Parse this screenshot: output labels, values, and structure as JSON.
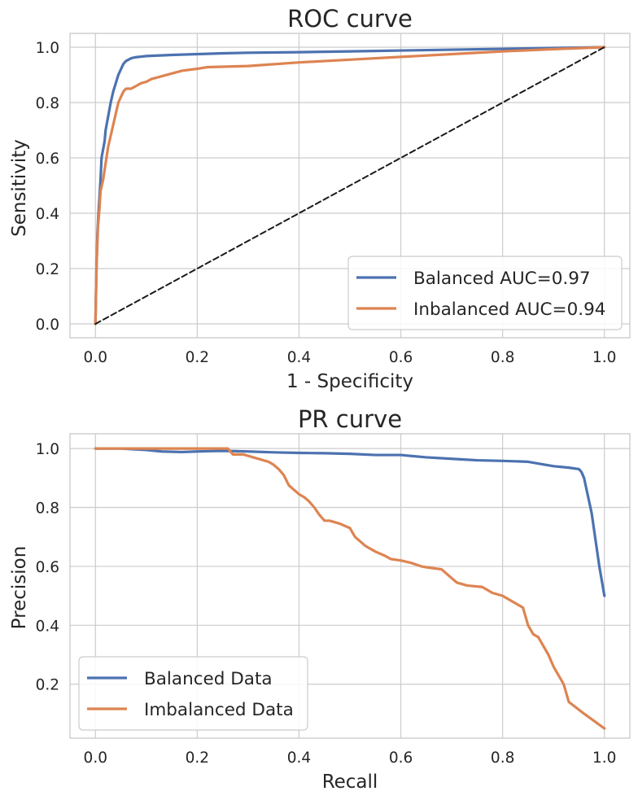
{
  "chart_data": [
    {
      "type": "line",
      "title": "ROC curve",
      "xlabel": "1 - Specificity",
      "ylabel": "Sensitivity",
      "xlim": [
        -0.05,
        1.05
      ],
      "ylim": [
        -0.05,
        1.05
      ],
      "xticks": [
        "0.0",
        "0.2",
        "0.4",
        "0.6",
        "0.8",
        "1.0"
      ],
      "yticks": [
        "0.0",
        "0.2",
        "0.4",
        "0.6",
        "0.8",
        "1.0"
      ],
      "grid": true,
      "legend_position": "lower-right",
      "series": [
        {
          "name": "Balanced AUC=0.97",
          "color": "#4c72b0",
          "x": [
            0,
            0.002,
            0.004,
            0.006,
            0.008,
            0.01,
            0.012,
            0.015,
            0.018,
            0.02,
            0.025,
            0.03,
            0.035,
            0.04,
            0.045,
            0.05,
            0.055,
            0.06,
            0.065,
            0.07,
            0.08,
            0.09,
            0.1,
            0.15,
            0.2,
            0.25,
            0.3,
            0.4,
            0.5,
            0.6,
            0.7,
            0.8,
            0.9,
            1.0
          ],
          "y": [
            0,
            0.2,
            0.33,
            0.4,
            0.46,
            0.52,
            0.6,
            0.63,
            0.66,
            0.7,
            0.75,
            0.8,
            0.84,
            0.87,
            0.9,
            0.92,
            0.94,
            0.95,
            0.955,
            0.96,
            0.964,
            0.966,
            0.968,
            0.972,
            0.975,
            0.978,
            0.98,
            0.982,
            0.985,
            0.988,
            0.991,
            0.994,
            0.997,
            1.0
          ]
        },
        {
          "name": "Inbalanced AUC=0.94",
          "color": "#dd8452",
          "x": [
            0,
            0.002,
            0.005,
            0.008,
            0.01,
            0.015,
            0.02,
            0.025,
            0.03,
            0.035,
            0.04,
            0.045,
            0.05,
            0.055,
            0.06,
            0.07,
            0.08,
            0.09,
            0.1,
            0.11,
            0.12,
            0.13,
            0.15,
            0.17,
            0.2,
            0.22,
            0.3,
            0.4,
            0.5,
            0.6,
            0.7,
            0.8,
            0.9,
            1.0
          ],
          "y": [
            0,
            0.2,
            0.35,
            0.42,
            0.48,
            0.52,
            0.58,
            0.64,
            0.68,
            0.72,
            0.76,
            0.8,
            0.82,
            0.84,
            0.85,
            0.85,
            0.86,
            0.87,
            0.875,
            0.885,
            0.89,
            0.895,
            0.905,
            0.915,
            0.922,
            0.928,
            0.932,
            0.945,
            0.955,
            0.965,
            0.975,
            0.985,
            0.993,
            1.0
          ]
        },
        {
          "name": "",
          "color": "#1a1a1a",
          "dashed": true,
          "x": [
            0,
            1
          ],
          "y": [
            0,
            1
          ]
        }
      ]
    },
    {
      "type": "line",
      "title": "PR curve",
      "xlabel": "Recall",
      "ylabel": "Precision",
      "xlim": [
        -0.05,
        1.05
      ],
      "ylim": [
        0.017,
        1.05
      ],
      "xticks": [
        "0.0",
        "0.2",
        "0.4",
        "0.6",
        "0.8",
        "1.0"
      ],
      "yticks": [
        "0.2",
        "0.4",
        "0.6",
        "0.8",
        "1.0"
      ],
      "grid": true,
      "legend_position": "lower-left",
      "series": [
        {
          "name": "Balanced Data",
          "color": "#4c72b0",
          "x": [
            0,
            0.05,
            0.1,
            0.13,
            0.17,
            0.2,
            0.25,
            0.3,
            0.35,
            0.4,
            0.45,
            0.5,
            0.55,
            0.6,
            0.65,
            0.7,
            0.75,
            0.8,
            0.85,
            0.9,
            0.93,
            0.95,
            0.955,
            0.96,
            0.965,
            0.97,
            0.975,
            0.98,
            0.985,
            0.99,
            0.995,
            1.0
          ],
          "y": [
            1.0,
            1.0,
            0.995,
            0.99,
            0.988,
            0.99,
            0.992,
            0.99,
            0.987,
            0.985,
            0.984,
            0.982,
            0.978,
            0.978,
            0.97,
            0.965,
            0.96,
            0.958,
            0.955,
            0.94,
            0.935,
            0.93,
            0.92,
            0.9,
            0.86,
            0.82,
            0.78,
            0.72,
            0.66,
            0.6,
            0.55,
            0.5
          ]
        },
        {
          "name": "Imbalanced Data",
          "color": "#dd8452",
          "x": [
            0,
            0.1,
            0.2,
            0.26,
            0.27,
            0.29,
            0.3,
            0.31,
            0.32,
            0.33,
            0.34,
            0.35,
            0.36,
            0.37,
            0.38,
            0.39,
            0.4,
            0.41,
            0.42,
            0.43,
            0.44,
            0.45,
            0.46,
            0.48,
            0.5,
            0.51,
            0.53,
            0.55,
            0.57,
            0.58,
            0.6,
            0.62,
            0.64,
            0.65,
            0.68,
            0.7,
            0.71,
            0.73,
            0.76,
            0.78,
            0.8,
            0.82,
            0.84,
            0.85,
            0.86,
            0.87,
            0.88,
            0.89,
            0.9,
            0.92,
            0.93,
            0.96,
            1.0
          ],
          "y": [
            1.0,
            1.0,
            1.0,
            1.0,
            0.98,
            0.98,
            0.975,
            0.97,
            0.965,
            0.96,
            0.955,
            0.945,
            0.93,
            0.91,
            0.875,
            0.86,
            0.845,
            0.835,
            0.82,
            0.8,
            0.775,
            0.755,
            0.755,
            0.745,
            0.73,
            0.7,
            0.67,
            0.65,
            0.635,
            0.625,
            0.62,
            0.612,
            0.6,
            0.597,
            0.59,
            0.56,
            0.545,
            0.535,
            0.53,
            0.51,
            0.5,
            0.48,
            0.46,
            0.4,
            0.37,
            0.36,
            0.33,
            0.3,
            0.26,
            0.2,
            0.14,
            0.1,
            0.05
          ]
        }
      ]
    }
  ]
}
